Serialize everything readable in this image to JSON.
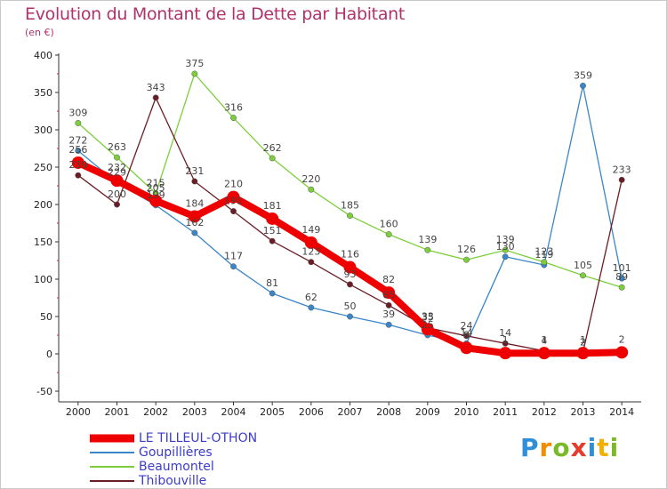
{
  "header": {
    "title": "Evolution du Montant de la Dette par Habitant",
    "unit": "(en €)"
  },
  "chart_data": {
    "type": "line",
    "x": [
      "2000",
      "2001",
      "2002",
      "2003",
      "2004",
      "2005",
      "2006",
      "2007",
      "2008",
      "2009",
      "2010",
      "2011",
      "2012",
      "2013",
      "2014"
    ],
    "ylim": [
      -50,
      400
    ],
    "yticks": [
      -50,
      0,
      50,
      100,
      150,
      200,
      250,
      300,
      350,
      400
    ],
    "grid": false,
    "legend_position": "bottom-left",
    "series": [
      {
        "name": "Goupillières",
        "color": "#3a86c8",
        "values": [
          272,
          229,
          199,
          162,
          117,
          81,
          62,
          50,
          39,
          25,
          14,
          130,
          119,
          359,
          101
        ]
      },
      {
        "name": "Beaumontel",
        "color": "#7ccf3a",
        "values": [
          309,
          263,
          215,
          375,
          316,
          262,
          220,
          185,
          160,
          139,
          126,
          139,
          123,
          105,
          89
        ]
      },
      {
        "name": "Thibouville",
        "color": "#6b1d26",
        "values": [
          239,
          200,
          343,
          231,
          191,
          151,
          123,
          93,
          65,
          35,
          24,
          14,
          4,
          2,
          233
        ]
      },
      {
        "name": "LE TILLEUL-OTHON",
        "color": "#ee0000",
        "bold": true,
        "values": [
          256,
          232,
          205,
          184,
          210,
          181,
          149,
          116,
          82,
          33,
          8,
          1,
          1,
          1,
          2
        ]
      }
    ],
    "legend_order": [
      "LE TILLEUL-OTHON",
      "Goupillières",
      "Beaumontel",
      "Thibouville"
    ]
  },
  "logo": {
    "letters": [
      "P",
      "r",
      "o",
      "x",
      "i",
      "t",
      "i"
    ],
    "colors": [
      "#2f8fd8",
      "#f28c00",
      "#7ab928",
      "#e53c2e",
      "#2f8fd8",
      "#f2b100",
      "#7ab928"
    ]
  }
}
